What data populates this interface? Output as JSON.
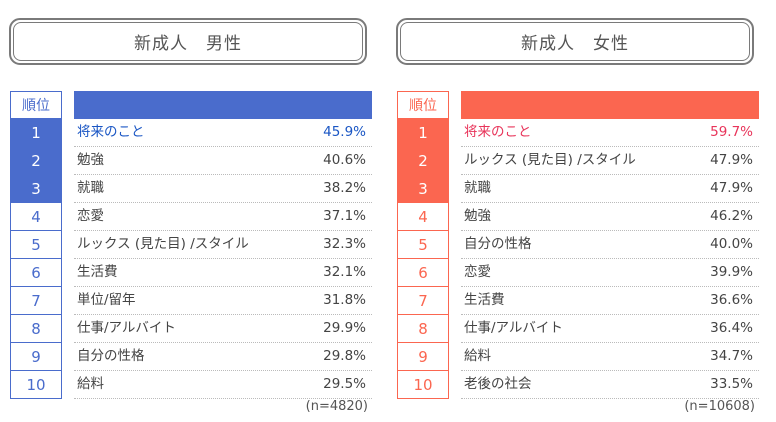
{
  "chart_data": [
    {
      "type": "table",
      "title": "新成人　男性",
      "header": "順位",
      "sample": "(n=4820)",
      "accent": "#4a6ccc",
      "highlight_text": "#1a56c4",
      "top_count": 3,
      "rows": [
        {
          "rank": "1",
          "item": "将来のこと",
          "pct": "45.9%",
          "value": 45.9
        },
        {
          "rank": "2",
          "item": "勉強",
          "pct": "40.6%",
          "value": 40.6
        },
        {
          "rank": "3",
          "item": "就職",
          "pct": "38.2%",
          "value": 38.2
        },
        {
          "rank": "4",
          "item": "恋愛",
          "pct": "37.1%",
          "value": 37.1
        },
        {
          "rank": "5",
          "item": "ルックス (見た目) /スタイル",
          "pct": "32.3%",
          "value": 32.3
        },
        {
          "rank": "6",
          "item": "生活費",
          "pct": "32.1%",
          "value": 32.1
        },
        {
          "rank": "7",
          "item": "単位/留年",
          "pct": "31.8%",
          "value": 31.8
        },
        {
          "rank": "8",
          "item": "仕事/アルバイト",
          "pct": "29.9%",
          "value": 29.9
        },
        {
          "rank": "9",
          "item": "自分の性格",
          "pct": "29.8%",
          "value": 29.8
        },
        {
          "rank": "10",
          "item": "給料",
          "pct": "29.5%",
          "value": 29.5
        }
      ]
    },
    {
      "type": "table",
      "title": "新成人　女性",
      "header": "順位",
      "sample": "(n=10608)",
      "accent": "#fb6650",
      "highlight_text": "#e8345a",
      "top_count": 3,
      "rows": [
        {
          "rank": "1",
          "item": "将来のこと",
          "pct": "59.7%",
          "value": 59.7
        },
        {
          "rank": "2",
          "item": "ルックス (見た目) /スタイル",
          "pct": "47.9%",
          "value": 47.9
        },
        {
          "rank": "3",
          "item": "就職",
          "pct": "47.9%",
          "value": 47.9
        },
        {
          "rank": "4",
          "item": "勉強",
          "pct": "46.2%",
          "value": 46.2
        },
        {
          "rank": "5",
          "item": "自分の性格",
          "pct": "40.0%",
          "value": 40.0
        },
        {
          "rank": "6",
          "item": "恋愛",
          "pct": "39.9%",
          "value": 39.9
        },
        {
          "rank": "7",
          "item": "生活費",
          "pct": "36.6%",
          "value": 36.6
        },
        {
          "rank": "8",
          "item": "仕事/アルバイト",
          "pct": "36.4%",
          "value": 36.4
        },
        {
          "rank": "9",
          "item": "給料",
          "pct": "34.7%",
          "value": 34.7
        },
        {
          "rank": "10",
          "item": "老後の社会",
          "pct": "33.5%",
          "value": 33.5
        }
      ]
    }
  ]
}
